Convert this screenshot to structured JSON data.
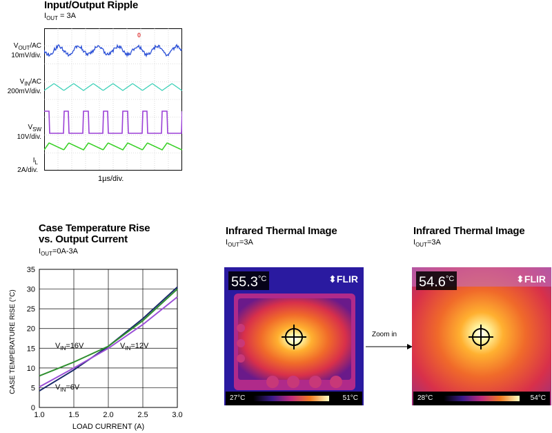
{
  "ripple_panel": {
    "title": "Input/Output Ripple",
    "subtitle_prefix": "I",
    "subtitle_sub": "OUT",
    "subtitle_rest": " = 3A",
    "timebase": "1µs/div.",
    "channels": [
      {
        "name_main": "V",
        "name_sub": "OUT",
        "name_tail": "/AC",
        "scale": "10mV/div.",
        "color": "#2a4fd6"
      },
      {
        "name_main": "V",
        "name_sub": "IN",
        "name_tail": "/AC",
        "scale": "200mV/div.",
        "color": "#3fd1b8"
      },
      {
        "name_main": "V",
        "name_sub": "SW",
        "name_tail": "",
        "scale": "10V/div.",
        "color": "#9a3fd6"
      },
      {
        "name_main": "I",
        "name_sub": "L",
        "name_tail": "",
        "scale": "2A/div.",
        "color": "#3cd12a"
      }
    ],
    "trigger_marker": "0"
  },
  "temp_panel": {
    "title_line1": "Case Temperature Rise",
    "title_line2": "vs. Output Current",
    "subtitle_prefix": "I",
    "subtitle_sub": "OUT",
    "subtitle_rest": "=0A-3A"
  },
  "chart_data": {
    "type": "line",
    "xlabel": "LOAD CURRENT (A)",
    "ylabel": "CASE TEMPERATURE RISE (°C)",
    "xlim": [
      1.0,
      3.0
    ],
    "ylim": [
      0,
      35
    ],
    "xticks": [
      "1.0",
      "1.5",
      "2.0",
      "2.5",
      "3.0"
    ],
    "yticks": [
      "0",
      "5",
      "10",
      "15",
      "20",
      "25",
      "30",
      "35"
    ],
    "grid": true,
    "series": [
      {
        "name": "VIN=6V",
        "label_main": "V",
        "label_sub": "IN",
        "label_tail": "=6V",
        "color": "#1a2a6a",
        "x": [
          1.0,
          1.5,
          2.0,
          2.5,
          3.0
        ],
        "y": [
          4.2,
          9.5,
          15.5,
          22.5,
          30.5
        ]
      },
      {
        "name": "VIN=12V",
        "label_main": "V",
        "label_sub": "IN",
        "label_tail": "=12V",
        "color": "#9a4fd6",
        "x": [
          1.0,
          1.5,
          2.0,
          2.5,
          3.0
        ],
        "y": [
          5.2,
          10.0,
          15.0,
          21.0,
          28.0
        ]
      },
      {
        "name": "VIN=16V",
        "label_main": "V",
        "label_sub": "IN",
        "label_tail": "=16V",
        "color": "#2f8f2f",
        "x": [
          1.0,
          1.5,
          2.0,
          2.5,
          3.0
        ],
        "y": [
          8.0,
          11.5,
          15.5,
          22.0,
          30.0
        ]
      }
    ]
  },
  "thermal_left": {
    "title": "Infrared Thermal Image",
    "subtitle_prefix": "I",
    "subtitle_sub": "OUT",
    "subtitle_rest": "=3A",
    "max_temp": "55.3",
    "unit": "°C",
    "brand": "FLIR",
    "scale_min": "27°C",
    "scale_max": "51°C"
  },
  "thermal_right": {
    "title": "Infrared Thermal Image",
    "subtitle_prefix": "I",
    "subtitle_sub": "OUT",
    "subtitle_rest": "=3A",
    "max_temp": "54.6",
    "unit": "°C",
    "brand": "FLIR",
    "scale_min": "28°C",
    "scale_max": "54°C"
  },
  "zoom_arrow": {
    "label": "Zoom in"
  }
}
